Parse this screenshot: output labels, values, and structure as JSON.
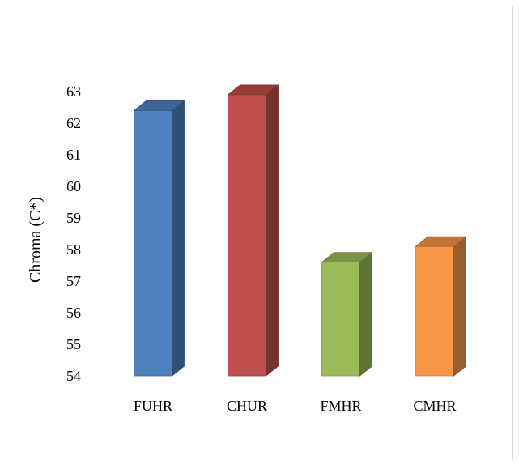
{
  "chart_data": {
    "type": "bar",
    "style": "3d-column",
    "categories": [
      "FUHR",
      "CHUR",
      "FMHR",
      "CMHR"
    ],
    "values": [
      62.4,
      62.9,
      57.6,
      58.1
    ],
    "colors": [
      "#4f81bd",
      "#c0504d",
      "#9bbb59",
      "#f79646"
    ],
    "title": "",
    "xlabel": "",
    "ylabel": "Chroma (C*)",
    "ylim": [
      54,
      63
    ],
    "yticks": [
      54,
      55,
      56,
      57,
      58,
      59,
      60,
      61,
      62,
      63
    ],
    "grid": false,
    "legend": "none"
  }
}
